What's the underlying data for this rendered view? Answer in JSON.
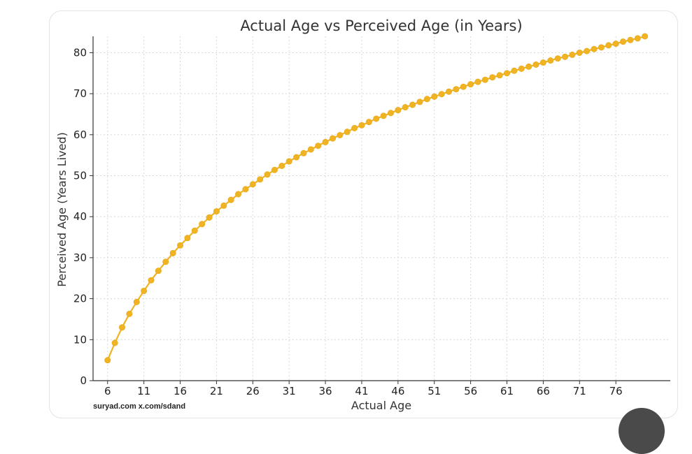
{
  "chart_data": {
    "type": "line",
    "title": "Actual Age vs Perceived Age (in Years)",
    "xlabel": "Actual Age",
    "ylabel": "Perceived Age (Years Lived)",
    "xlim": [
      4,
      83.5
    ],
    "ylim": [
      0,
      84
    ],
    "xticks": [
      6,
      11,
      16,
      21,
      26,
      31,
      36,
      41,
      46,
      51,
      56,
      61,
      66,
      71,
      76
    ],
    "yticks": [
      0,
      10,
      20,
      30,
      40,
      50,
      60,
      70,
      80
    ],
    "grid": true,
    "series_color": "#f0b323",
    "series": [
      {
        "x": [
          6,
          7,
          8,
          9,
          10,
          11,
          12,
          13,
          14,
          15,
          16,
          17,
          18,
          19,
          20,
          21,
          22,
          23,
          24,
          25,
          26,
          27,
          28,
          29,
          30,
          31,
          32,
          33,
          34,
          35,
          36,
          37,
          38,
          39,
          40,
          41,
          42,
          43,
          44,
          45,
          46,
          47,
          48,
          49,
          50,
          51,
          52,
          53,
          54,
          55,
          56,
          57,
          58,
          59,
          60,
          61,
          62,
          63,
          64,
          65,
          66,
          67,
          68,
          69,
          70,
          71,
          72,
          73,
          74,
          75,
          76,
          77,
          78,
          79,
          80
        ],
        "values": [
          5.0,
          9.2,
          13.0,
          16.3,
          19.2,
          21.9,
          24.5,
          26.8,
          29.0,
          31.1,
          33.0,
          34.8,
          36.6,
          38.2,
          39.8,
          41.3,
          42.7,
          44.1,
          45.5,
          46.7,
          47.9,
          49.1,
          50.3,
          51.4,
          52.4,
          53.5,
          54.5,
          55.5,
          56.4,
          57.3,
          58.2,
          59.1,
          59.9,
          60.7,
          61.6,
          62.3,
          63.1,
          63.9,
          64.6,
          65.3,
          66.0,
          66.7,
          67.3,
          68.0,
          68.7,
          69.3,
          69.9,
          70.5,
          71.1,
          71.7,
          72.3,
          72.9,
          73.4,
          74.0,
          74.5,
          75.0,
          75.6,
          76.1,
          76.6,
          77.1,
          77.6,
          78.1,
          78.6,
          79.0,
          79.5,
          80.0,
          80.4,
          80.9,
          81.3,
          81.8,
          82.2,
          82.7,
          83.1,
          83.5,
          84.0
        ]
      }
    ]
  },
  "watermark": "suryad.com x.com/sdand"
}
